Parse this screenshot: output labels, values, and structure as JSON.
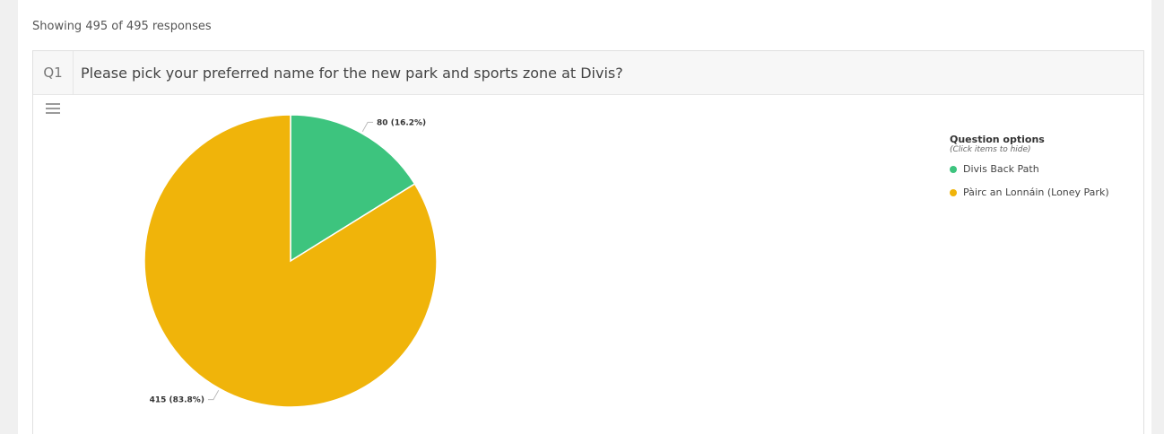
{
  "header": {
    "showing_text": "Showing 495 of 495 responses"
  },
  "question": {
    "number": "Q1",
    "text": "Please pick your preferred name for the new park and sports zone at Divis?"
  },
  "legend": {
    "title": "Question options",
    "subtitle": "(Click items to hide)",
    "items": [
      {
        "label": "Divis Back Path",
        "color": "#3dc47e"
      },
      {
        "label": "Pàirc an Lonnáin (Loney Park)",
        "color": "#f0b40a"
      }
    ]
  },
  "icons": {
    "menu": "hamburger-menu-icon"
  },
  "chart_data": {
    "type": "pie",
    "total": 495,
    "categories": [
      "Divis Back Path",
      "Pàirc an Lonnáin (Loney Park)"
    ],
    "values": [
      80,
      415
    ],
    "percentages": [
      16.2,
      83.8
    ],
    "data_labels": [
      "80 (16.2%)",
      "415 (83.8%)"
    ],
    "colors": [
      "#3dc47e",
      "#f0b40a"
    ],
    "legend_position": "right"
  }
}
